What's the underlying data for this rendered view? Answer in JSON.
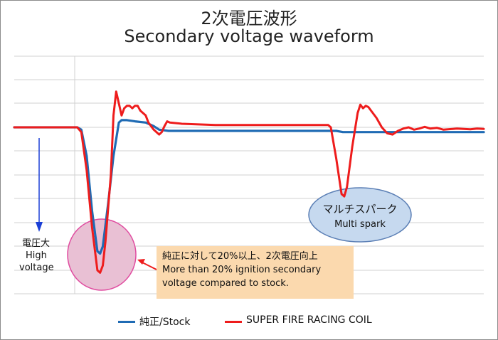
{
  "chart_data": {
    "type": "line",
    "title_jp": "2次電圧波形",
    "title_en": "Secondary voltage waveform",
    "grid": true,
    "y_axis_labels": false,
    "x_axis_labels": false,
    "series": [
      {
        "name": "純正/Stock",
        "color": "#1f6bb4",
        "points": [
          [
            0,
            0.0
          ],
          [
            40,
            0.0
          ],
          [
            47,
            0.0
          ],
          [
            50,
            -0.1
          ],
          [
            54,
            -1.2
          ],
          [
            58,
            -3.5
          ],
          [
            62,
            -5.2
          ],
          [
            64,
            -5.3
          ],
          [
            66,
            -5.0
          ],
          [
            70,
            -3.2
          ],
          [
            74,
            -1.2
          ],
          [
            78,
            0.2
          ],
          [
            80,
            0.3
          ],
          [
            84,
            0.3
          ],
          [
            90,
            0.25
          ],
          [
            98,
            0.2
          ],
          [
            104,
            0.05
          ],
          [
            108,
            -0.1
          ],
          [
            115,
            -0.15
          ],
          [
            125,
            -0.15
          ],
          [
            150,
            -0.15
          ],
          [
            200,
            -0.15
          ],
          [
            240,
            -0.15
          ],
          [
            245,
            -0.2
          ],
          [
            270,
            -0.2
          ],
          [
            320,
            -0.2
          ],
          [
            350,
            -0.2
          ]
        ]
      },
      {
        "name": "SUPER FIRE RACING COIL",
        "color": "#ee1c1c",
        "points": [
          [
            0,
            0.0
          ],
          [
            40,
            0.0
          ],
          [
            47,
            0.0
          ],
          [
            50,
            -0.2
          ],
          [
            54,
            -1.8
          ],
          [
            58,
            -4.2
          ],
          [
            62,
            -6.0
          ],
          [
            64,
            -6.1
          ],
          [
            66,
            -5.8
          ],
          [
            68,
            -4.8
          ],
          [
            72,
            -2.0
          ],
          [
            74,
            0.5
          ],
          [
            76,
            1.5
          ],
          [
            78,
            1.0
          ],
          [
            80,
            0.5
          ],
          [
            82,
            0.8
          ],
          [
            84,
            0.9
          ],
          [
            86,
            0.9
          ],
          [
            88,
            0.8
          ],
          [
            90,
            0.9
          ],
          [
            92,
            0.9
          ],
          [
            94,
            0.7
          ],
          [
            98,
            0.5
          ],
          [
            100,
            0.2
          ],
          [
            104,
            -0.1
          ],
          [
            108,
            -0.3
          ],
          [
            110,
            -0.2
          ],
          [
            112,
            0.05
          ],
          [
            114,
            0.25
          ],
          [
            116,
            0.2
          ],
          [
            125,
            0.15
          ],
          [
            150,
            0.1
          ],
          [
            200,
            0.1
          ],
          [
            234,
            0.1
          ],
          [
            236,
            0.0
          ],
          [
            240,
            -1.3
          ],
          [
            244,
            -2.8
          ],
          [
            246,
            -2.9
          ],
          [
            248,
            -2.5
          ],
          [
            252,
            -0.8
          ],
          [
            256,
            0.6
          ],
          [
            258,
            0.95
          ],
          [
            260,
            0.8
          ],
          [
            262,
            0.9
          ],
          [
            264,
            0.85
          ],
          [
            266,
            0.7
          ],
          [
            270,
            0.4
          ],
          [
            274,
            0.0
          ],
          [
            278,
            -0.25
          ],
          [
            282,
            -0.3
          ],
          [
            286,
            -0.15
          ],
          [
            290,
            -0.05
          ],
          [
            294,
            0.0
          ],
          [
            298,
            -0.1
          ],
          [
            302,
            -0.05
          ],
          [
            306,
            0.02
          ],
          [
            310,
            -0.05
          ],
          [
            315,
            -0.02
          ],
          [
            320,
            -0.1
          ],
          [
            330,
            -0.05
          ],
          [
            340,
            -0.08
          ],
          [
            345,
            -0.05
          ],
          [
            350,
            -0.07
          ]
        ]
      }
    ],
    "annotations": {
      "arrow_label_jp": "電圧大",
      "arrow_label_en_1": "High",
      "arrow_label_en_2": "voltage",
      "callout_jp": "純正に対して20%以上、2次電圧向上",
      "callout_en_1": "More than 20% ignition secondary",
      "callout_en_2": "voltage compared to stock.",
      "multi_spark_jp": "マルチスパーク",
      "multi_spark_en": "Multi spark"
    },
    "legend_position": "bottom"
  },
  "colors": {
    "frame": "#8c8c8c",
    "grid": "#d0d0d0",
    "arrow": "#1a3fd6",
    "pink_circle_fill": "#e9c0d4",
    "pink_circle_stroke": "#e04ca0",
    "multi_ellipse_fill": "#c6d9ef",
    "multi_ellipse_stroke": "#5b7fb5",
    "callout_fill": "#fbd9ae",
    "callout_arrow": "#ee1c1c"
  }
}
